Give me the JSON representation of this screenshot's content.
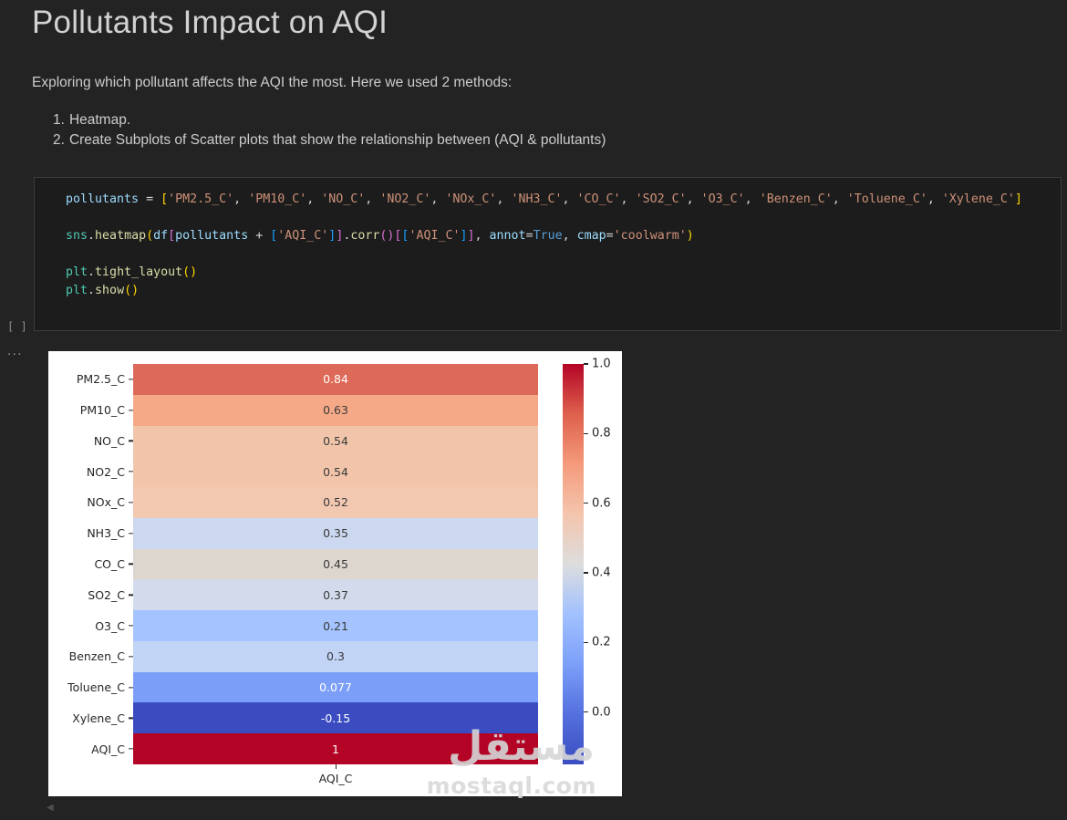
{
  "page": {
    "title": "Pollutants Impact on AQI",
    "intro": "Exploring which pollutant affects the AQI the most. Here we used 2 methods:",
    "list_items": [
      {
        "number": "1.",
        "text": "Heatmap."
      },
      {
        "number": "2.",
        "text": "Create Subplots of Scatter plots that show the relationship between (AQI & pollutants)"
      }
    ]
  },
  "cell": {
    "execution_indicator": "[ ]",
    "collapse_dots": "...",
    "code_lines": [
      [
        {
          "t": "pollutants",
          "c": "v"
        },
        {
          "t": " = ",
          "c": "w"
        },
        {
          "t": "[",
          "c": "b1"
        },
        {
          "t": "'PM2.5_C'",
          "c": "s"
        },
        {
          "t": ", ",
          "c": "w"
        },
        {
          "t": "'PM10_C'",
          "c": "s"
        },
        {
          "t": ", ",
          "c": "w"
        },
        {
          "t": "'NO_C'",
          "c": "s"
        },
        {
          "t": ", ",
          "c": "w"
        },
        {
          "t": "'NO2_C'",
          "c": "s"
        },
        {
          "t": ", ",
          "c": "w"
        },
        {
          "t": "'NOx_C'",
          "c": "s"
        },
        {
          "t": ", ",
          "c": "w"
        },
        {
          "t": "'NH3_C'",
          "c": "s"
        },
        {
          "t": ", ",
          "c": "w"
        },
        {
          "t": "'CO_C'",
          "c": "s"
        },
        {
          "t": ", ",
          "c": "w"
        },
        {
          "t": "'SO2_C'",
          "c": "s"
        },
        {
          "t": ", ",
          "c": "w"
        },
        {
          "t": "'O3_C'",
          "c": "s"
        },
        {
          "t": ", ",
          "c": "w"
        },
        {
          "t": "'Benzen_C'",
          "c": "s"
        },
        {
          "t": ", ",
          "c": "w"
        },
        {
          "t": "'Toluene_C'",
          "c": "s"
        },
        {
          "t": ", ",
          "c": "w"
        },
        {
          "t": "'Xylene_C'",
          "c": "s"
        },
        {
          "t": "]",
          "c": "b1"
        }
      ],
      [],
      [
        {
          "t": "sns",
          "c": "cls"
        },
        {
          "t": ".",
          "c": "w"
        },
        {
          "t": "heatmap",
          "c": "fn"
        },
        {
          "t": "(",
          "c": "b1"
        },
        {
          "t": "df",
          "c": "v"
        },
        {
          "t": "[",
          "c": "b2"
        },
        {
          "t": "pollutants",
          "c": "v"
        },
        {
          "t": " + ",
          "c": "w"
        },
        {
          "t": "[",
          "c": "b3"
        },
        {
          "t": "'AQI_C'",
          "c": "s"
        },
        {
          "t": "]",
          "c": "b3"
        },
        {
          "t": "]",
          "c": "b2"
        },
        {
          "t": ".",
          "c": "w"
        },
        {
          "t": "corr",
          "c": "fn"
        },
        {
          "t": "(",
          "c": "b2"
        },
        {
          "t": ")",
          "c": "b2"
        },
        {
          "t": "[",
          "c": "b2"
        },
        {
          "t": "[",
          "c": "b3"
        },
        {
          "t": "'AQI_C'",
          "c": "s"
        },
        {
          "t": "]",
          "c": "b3"
        },
        {
          "t": "]",
          "c": "b2"
        },
        {
          "t": ", ",
          "c": "w"
        },
        {
          "t": "annot",
          "c": "v"
        },
        {
          "t": "=",
          "c": "w"
        },
        {
          "t": "True",
          "c": "kw"
        },
        {
          "t": ", ",
          "c": "w"
        },
        {
          "t": "cmap",
          "c": "v"
        },
        {
          "t": "=",
          "c": "w"
        },
        {
          "t": "'coolwarm'",
          "c": "s"
        },
        {
          "t": ")",
          "c": "b1"
        }
      ],
      [],
      [
        {
          "t": "plt",
          "c": "cls"
        },
        {
          "t": ".",
          "c": "w"
        },
        {
          "t": "tight_layout",
          "c": "fn"
        },
        {
          "t": "(",
          "c": "b1"
        },
        {
          "t": ")",
          "c": "b1"
        }
      ],
      [
        {
          "t": "plt",
          "c": "cls"
        },
        {
          "t": ".",
          "c": "w"
        },
        {
          "t": "show",
          "c": "fn"
        },
        {
          "t": "(",
          "c": "b1"
        },
        {
          "t": ")",
          "c": "b1"
        }
      ]
    ]
  },
  "chart_data": {
    "type": "heatmap",
    "cmap": "coolwarm",
    "x_categories": [
      "AQI_C"
    ],
    "xlabel_tick": "AQI_C",
    "value_range": [
      -0.15,
      1.0
    ],
    "rows": [
      {
        "label": "PM2.5_C",
        "value": "0.84",
        "color": "#dd6a58",
        "text_color": "#ffffff"
      },
      {
        "label": "PM10_C",
        "value": "0.63",
        "color": "#f5a987",
        "text_color": "#3b3b3b"
      },
      {
        "label": "NO_C",
        "value": "0.54",
        "color": "#f2c5ab",
        "text_color": "#3b3b3b"
      },
      {
        "label": "NO2_C",
        "value": "0.54",
        "color": "#f2c5ab",
        "text_color": "#3b3b3b"
      },
      {
        "label": "NOx_C",
        "value": "0.52",
        "color": "#f3c8b1",
        "text_color": "#3b3b3b"
      },
      {
        "label": "NH3_C",
        "value": "0.35",
        "color": "#cbd8f0",
        "text_color": "#3b3b3b"
      },
      {
        "label": "CO_C",
        "value": "0.45",
        "color": "#dcd6ce",
        "text_color": "#3b3b3b"
      },
      {
        "label": "SO2_C",
        "value": "0.37",
        "color": "#d2daeb",
        "text_color": "#3b3b3b"
      },
      {
        "label": "O3_C",
        "value": "0.21",
        "color": "#a5c3fe",
        "text_color": "#3b3b3b"
      },
      {
        "label": "Benzen_C",
        "value": "0.3",
        "color": "#c1d4f6",
        "text_color": "#3b3b3b"
      },
      {
        "label": "Toluene_C",
        "value": "0.077",
        "color": "#7b9ff9",
        "text_color": "#ffffff"
      },
      {
        "label": "Xylene_C",
        "value": "-0.15",
        "color": "#3b4cc0",
        "text_color": "#ffffff"
      },
      {
        "label": "AQI_C",
        "value": "1",
        "color": "#b40426",
        "text_color": "#ffffff"
      }
    ],
    "colorbar": {
      "ticks": [
        {
          "label": "1.0",
          "value": 1.0
        },
        {
          "label": "0.8",
          "value": 0.8
        },
        {
          "label": "0.6",
          "value": 0.6
        },
        {
          "label": "0.4",
          "value": 0.4
        },
        {
          "label": "0.2",
          "value": 0.2
        },
        {
          "label": "0.0",
          "value": 0.0
        }
      ],
      "gradient": [
        {
          "color": "#b40426",
          "pos": 0
        },
        {
          "color": "#de604d",
          "pos": 12.5
        },
        {
          "color": "#f49a7b",
          "pos": 25
        },
        {
          "color": "#f4c5ad",
          "pos": 37.5
        },
        {
          "color": "#dddddd",
          "pos": 50
        },
        {
          "color": "#a2c1ff",
          "pos": 62.5
        },
        {
          "color": "#7c9ff9",
          "pos": 75
        },
        {
          "color": "#5470de",
          "pos": 87.5
        },
        {
          "color": "#3b4cc0",
          "pos": 100
        }
      ]
    },
    "watermark": {
      "text_arabic": "مستقل",
      "text_latin": "mostaql.com"
    },
    "scroll_arrow": "◀"
  }
}
